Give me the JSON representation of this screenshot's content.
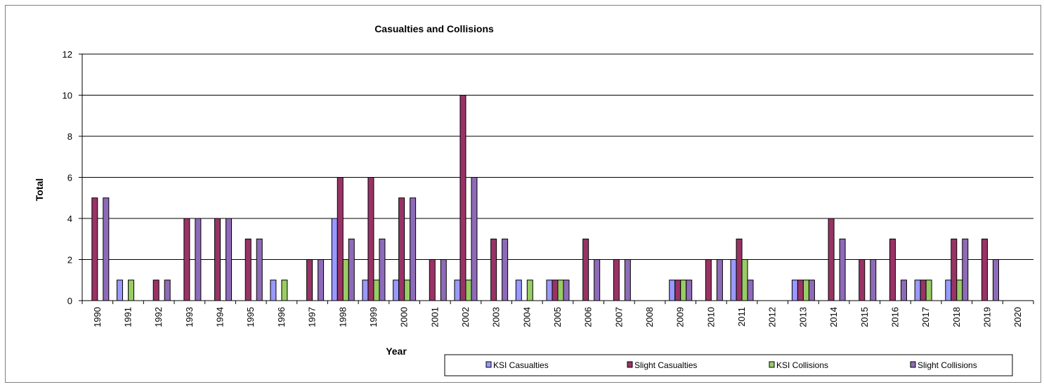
{
  "chart_data": {
    "type": "bar",
    "title": "Casualties and Collisions",
    "xlabel": "Year",
    "ylabel": "Total",
    "ylim": [
      0,
      12
    ],
    "yticks": [
      0,
      2,
      4,
      6,
      8,
      10,
      12
    ],
    "grid": true,
    "legend_position": "bottom-right",
    "categories": [
      "1990",
      "1991",
      "1992",
      "1993",
      "1994",
      "1995",
      "1996",
      "1997",
      "1998",
      "1999",
      "2000",
      "2001",
      "2002",
      "2003",
      "2004",
      "2005",
      "2006",
      "2007",
      "2008",
      "2009",
      "2010",
      "2011",
      "2012",
      "2013",
      "2014",
      "2015",
      "2016",
      "2017",
      "2018",
      "2019",
      "2020"
    ],
    "series": [
      {
        "name": "KSI Casualties",
        "color": "#9999ff",
        "values": [
          0,
          1,
          0,
          0,
          0,
          0,
          1,
          0,
          4,
          1,
          1,
          0,
          1,
          0,
          1,
          1,
          0,
          0,
          0,
          1,
          0,
          2,
          0,
          1,
          0,
          0,
          0,
          1,
          1,
          0,
          0
        ]
      },
      {
        "name": "Slight Casualties",
        "color": "#993366",
        "values": [
          5,
          0,
          1,
          4,
          4,
          3,
          0,
          2,
          6,
          6,
          5,
          2,
          10,
          3,
          0,
          1,
          3,
          2,
          0,
          1,
          2,
          3,
          0,
          1,
          4,
          2,
          3,
          1,
          3,
          3,
          0
        ]
      },
      {
        "name": "KSI Collisions",
        "color": "#99cc66",
        "values": [
          0,
          1,
          0,
          0,
          0,
          0,
          1,
          0,
          2,
          1,
          1,
          0,
          1,
          0,
          1,
          1,
          0,
          0,
          0,
          1,
          0,
          2,
          0,
          1,
          0,
          0,
          0,
          1,
          1,
          0,
          0
        ]
      },
      {
        "name": "Slight Collisions",
        "color": "#8e6bb8",
        "values": [
          5,
          0,
          1,
          4,
          4,
          3,
          0,
          2,
          3,
          3,
          5,
          2,
          6,
          3,
          0,
          1,
          2,
          2,
          0,
          1,
          2,
          1,
          0,
          1,
          3,
          2,
          1,
          0,
          3,
          2,
          0
        ]
      }
    ]
  }
}
